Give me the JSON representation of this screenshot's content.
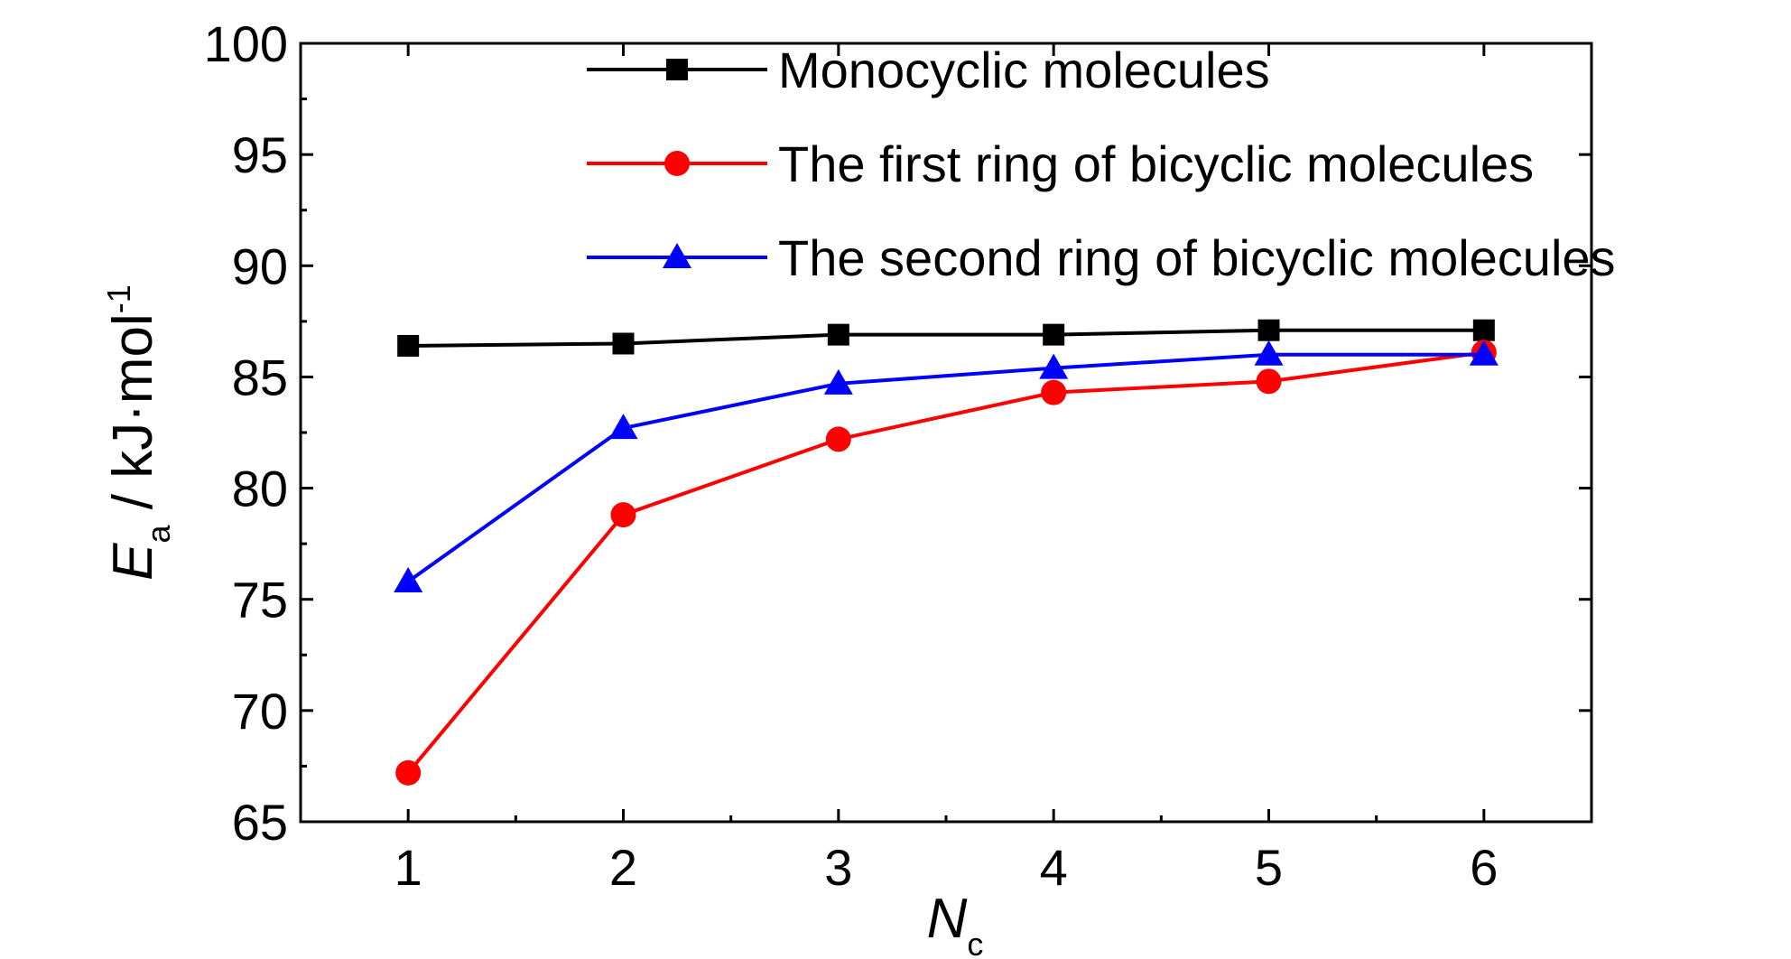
{
  "chart_data": {
    "type": "line",
    "x": [
      1,
      2,
      3,
      4,
      5,
      6
    ],
    "xlim": [
      0.5,
      6.5
    ],
    "ylim": [
      65,
      100
    ],
    "x_ticks": [
      "1",
      "2",
      "3",
      "4",
      "5",
      "6"
    ],
    "y_ticks": [
      "65",
      "70",
      "75",
      "80",
      "85",
      "90",
      "95",
      "100"
    ],
    "xlabel": {
      "main": "N",
      "sub": "c"
    },
    "ylabel": {
      "main": "E",
      "sub": "a",
      "rest": " / kJ·mol",
      "sup": "-1"
    },
    "grid": false,
    "legend_position": "top-right",
    "series": [
      {
        "name": "Monocyclic molecules",
        "marker": "square",
        "color": "#000000",
        "values": [
          86.4,
          86.5,
          86.9,
          86.9,
          87.1,
          87.1
        ]
      },
      {
        "name": "The first ring of bicyclic molecules",
        "marker": "circle",
        "color": "#ff0000",
        "values": [
          67.2,
          78.8,
          82.2,
          84.3,
          84.8,
          86.1
        ]
      },
      {
        "name": "The second ring of  bicyclic molecules",
        "marker": "triangle",
        "color": "#0000ff",
        "values": [
          75.8,
          82.7,
          84.7,
          85.4,
          86.0,
          86.0
        ]
      }
    ]
  }
}
